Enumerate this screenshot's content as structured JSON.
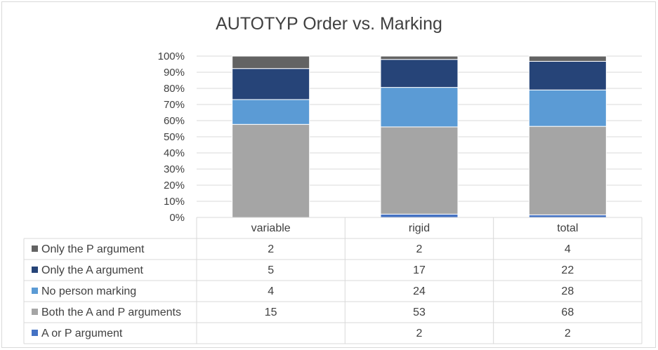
{
  "chart_data": {
    "type": "bar",
    "stacked": "percent",
    "title": "AUTOTYP Order vs. Marking",
    "categories": [
      "variable",
      "rigid",
      "total"
    ],
    "series": [
      {
        "name": "A or P argument",
        "values": [
          null,
          2,
          2
        ],
        "color": "#4472c4"
      },
      {
        "name": "Both the A and P arguments",
        "values": [
          15,
          53,
          68
        ],
        "color": "#a5a5a5"
      },
      {
        "name": "No person marking",
        "values": [
          4,
          24,
          28
        ],
        "color": "#5b9bd5"
      },
      {
        "name": "Only the A argument",
        "values": [
          5,
          17,
          22
        ],
        "color": "#264478"
      },
      {
        "name": "Only the P argument",
        "values": [
          2,
          2,
          4
        ],
        "color": "#636363"
      }
    ],
    "table_row_order": [
      "Only the P argument",
      "Only the A argument",
      "No person marking",
      "Both the A and P arguments",
      "A or P argument"
    ],
    "y_ticks": [
      "0%",
      "10%",
      "20%",
      "30%",
      "40%",
      "50%",
      "60%",
      "70%",
      "80%",
      "90%",
      "100%"
    ],
    "ylim": [
      0,
      100
    ],
    "grid": true,
    "legend": "data-table"
  }
}
